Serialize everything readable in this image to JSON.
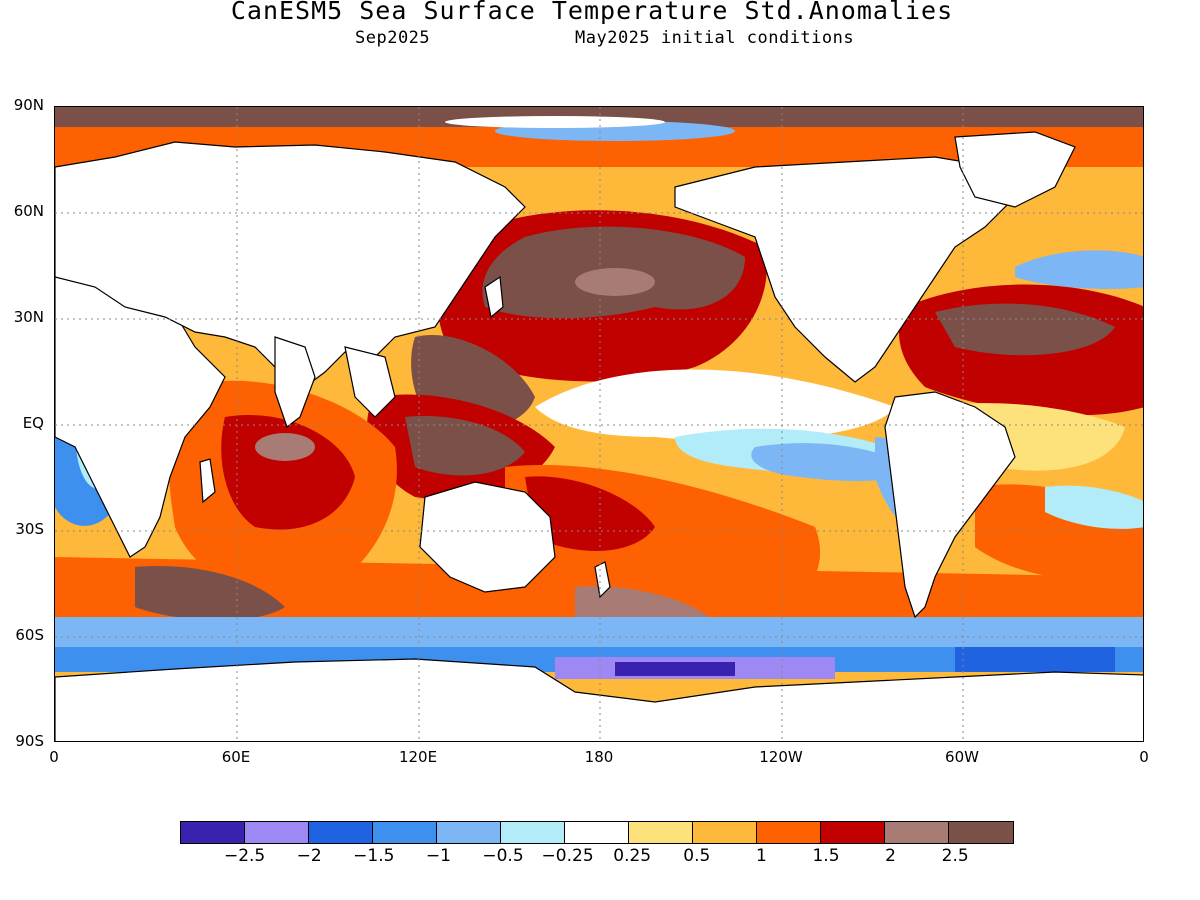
{
  "header": {
    "title": "CanESM5 Sea Surface Temperature Std.Anomalies",
    "valid_month": "Sep2025",
    "init": "May2025 initial conditions"
  },
  "map": {
    "lat_labels": [
      "90N",
      "60N",
      "30N",
      "EQ",
      "30S",
      "60S",
      "90S"
    ],
    "lon_labels": [
      "0",
      "60E",
      "120E",
      "180",
      "120W",
      "60W",
      "0"
    ],
    "grid": "dotted"
  },
  "colorbar": {
    "colors": [
      "#3a22b0",
      "#9d88f4",
      "#1f63e0",
      "#3e90ef",
      "#7cb6f5",
      "#b2ecf9",
      "#ffffff",
      "#fde27b",
      "#feb93a",
      "#fd6101",
      "#c10000",
      "#a87c74",
      "#7b5049"
    ],
    "labels": [
      "−2.5",
      "−2",
      "−1.5",
      "−1",
      "−0.5",
      "−0.25",
      "0.25",
      "0.5",
      "1",
      "1.5",
      "2",
      "2.5"
    ]
  }
}
